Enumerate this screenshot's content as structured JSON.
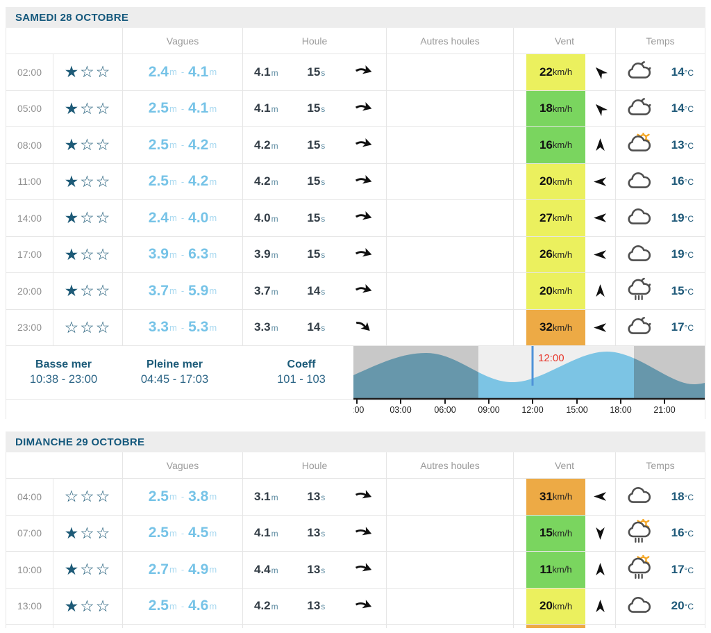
{
  "columns": [
    {
      "label": "Vagues"
    },
    {
      "label": "Houle"
    },
    {
      "label": "Autres houles"
    },
    {
      "label": "Vent"
    },
    {
      "label": "Temps"
    }
  ],
  "units": {
    "m": "m",
    "s": "s",
    "kmh": "km/h",
    "degc": "°C",
    "range_dash": "-"
  },
  "icons": {
    "star_filled": "★",
    "star_empty": "☆",
    "swell_arrow": "swell-direction-arrow",
    "wind_arrow": "wind-direction-arrow"
  },
  "colors": {
    "wind_green": "#7ad55f",
    "wind_yellow": "#ebf05e",
    "wind_orange": "#edaa45",
    "night_bg": "#c8c8c8",
    "day_bg": "#efefef",
    "wave_night": "#6797ab",
    "wave_day": "#7cc4e4",
    "now_line": "#4f93d8",
    "now_label": "#e8392e",
    "sun": "#f5a623",
    "icon_stroke": "#4f4f4f"
  },
  "days": [
    {
      "title": "SAMEDI 28 OCTOBRE",
      "rows": [
        {
          "time": "02:00",
          "stars": 1,
          "wave_min": "2.4",
          "wave_max": "4.1",
          "swell_h": "4.1",
          "swell_p": "15",
          "swell_dir": 18,
          "wind": "22",
          "wind_level": "wind_yellow",
          "wind_dir": 315,
          "weather": "cloud-moon",
          "temp": "14"
        },
        {
          "time": "05:00",
          "stars": 1,
          "wave_min": "2.5",
          "wave_max": "4.1",
          "swell_h": "4.1",
          "swell_p": "15",
          "swell_dir": 18,
          "wind": "18",
          "wind_level": "wind_green",
          "wind_dir": 315,
          "weather": "cloud-moon",
          "temp": "14"
        },
        {
          "time": "08:00",
          "stars": 1,
          "wave_min": "2.5",
          "wave_max": "4.2",
          "swell_h": "4.2",
          "swell_p": "15",
          "swell_dir": 18,
          "wind": "16",
          "wind_level": "wind_green",
          "wind_dir": 0,
          "weather": "cloud-sun",
          "temp": "13"
        },
        {
          "time": "11:00",
          "stars": 1,
          "wave_min": "2.5",
          "wave_max": "4.2",
          "swell_h": "4.2",
          "swell_p": "15",
          "swell_dir": 18,
          "wind": "20",
          "wind_level": "wind_yellow",
          "wind_dir": 270,
          "weather": "cloud",
          "temp": "16"
        },
        {
          "time": "14:00",
          "stars": 1,
          "wave_min": "2.4",
          "wave_max": "4.0",
          "swell_h": "4.0",
          "swell_p": "15",
          "swell_dir": 18,
          "wind": "27",
          "wind_level": "wind_yellow",
          "wind_dir": 270,
          "weather": "cloud",
          "temp": "19"
        },
        {
          "time": "17:00",
          "stars": 1,
          "wave_min": "3.9",
          "wave_max": "6.3",
          "swell_h": "3.9",
          "swell_p": "15",
          "swell_dir": 18,
          "wind": "26",
          "wind_level": "wind_yellow",
          "wind_dir": 270,
          "weather": "cloud",
          "temp": "19"
        },
        {
          "time": "20:00",
          "stars": 1,
          "wave_min": "3.7",
          "wave_max": "5.9",
          "swell_h": "3.7",
          "swell_p": "14",
          "swell_dir": 18,
          "wind": "20",
          "wind_level": "wind_yellow",
          "wind_dir": 0,
          "weather": "cloud-rain-moon",
          "temp": "15"
        },
        {
          "time": "23:00",
          "stars": 0,
          "wave_min": "3.3",
          "wave_max": "5.3",
          "swell_h": "3.3",
          "swell_p": "14",
          "swell_dir": 45,
          "wind": "32",
          "wind_level": "wind_orange",
          "wind_dir": 270,
          "weather": "cloud-moon",
          "temp": "17"
        }
      ],
      "tide": {
        "low_label": "Basse mer",
        "low_times": "10:38 - 23:00",
        "high_label": "Pleine mer",
        "high_times": "04:45 - 17:03",
        "coeff_label": "Coeff",
        "coeff_values": "101 - 103",
        "chart": {
          "now_label": "12:00",
          "ticks": [
            ":00",
            "03:00",
            "06:00",
            "09:00",
            "12:00",
            "15:00",
            "18:00",
            "21:00"
          ],
          "tick_hours": [
            0,
            3,
            6,
            9,
            12,
            15,
            18,
            21
          ],
          "now_hour": 12,
          "daylight_hours": [
            8.3,
            18.9
          ],
          "high_tide_hours": [
            4.75,
            17.05
          ],
          "low_tide_hours": [
            10.63,
            23.0
          ]
        }
      }
    },
    {
      "title": "DIMANCHE 29 OCTOBRE",
      "rows": [
        {
          "time": "04:00",
          "stars": 0,
          "wave_min": "2.5",
          "wave_max": "3.8",
          "swell_h": "3.1",
          "swell_p": "13",
          "swell_dir": 22,
          "wind": "31",
          "wind_level": "wind_orange",
          "wind_dir": 270,
          "weather": "cloud",
          "temp": "18"
        },
        {
          "time": "07:00",
          "stars": 1,
          "wave_min": "2.5",
          "wave_max": "4.5",
          "swell_h": "4.1",
          "swell_p": "13",
          "swell_dir": 22,
          "wind": "15",
          "wind_level": "wind_green",
          "wind_dir": 180,
          "weather": "cloud-rain-sun",
          "temp": "16"
        },
        {
          "time": "10:00",
          "stars": 1,
          "wave_min": "2.7",
          "wave_max": "4.9",
          "swell_h": "4.4",
          "swell_p": "13",
          "swell_dir": 22,
          "wind": "11",
          "wind_level": "wind_green",
          "wind_dir": 0,
          "weather": "cloud-rain-sun",
          "temp": "17"
        },
        {
          "time": "13:00",
          "stars": 1,
          "wave_min": "2.5",
          "wave_max": "4.6",
          "swell_h": "4.2",
          "swell_p": "13",
          "swell_dir": 22,
          "wind": "20",
          "wind_level": "wind_yellow",
          "wind_dir": 0,
          "weather": "cloud",
          "temp": "20"
        }
      ],
      "partial_next_row": {
        "wind_level": "wind_orange"
      }
    }
  ]
}
